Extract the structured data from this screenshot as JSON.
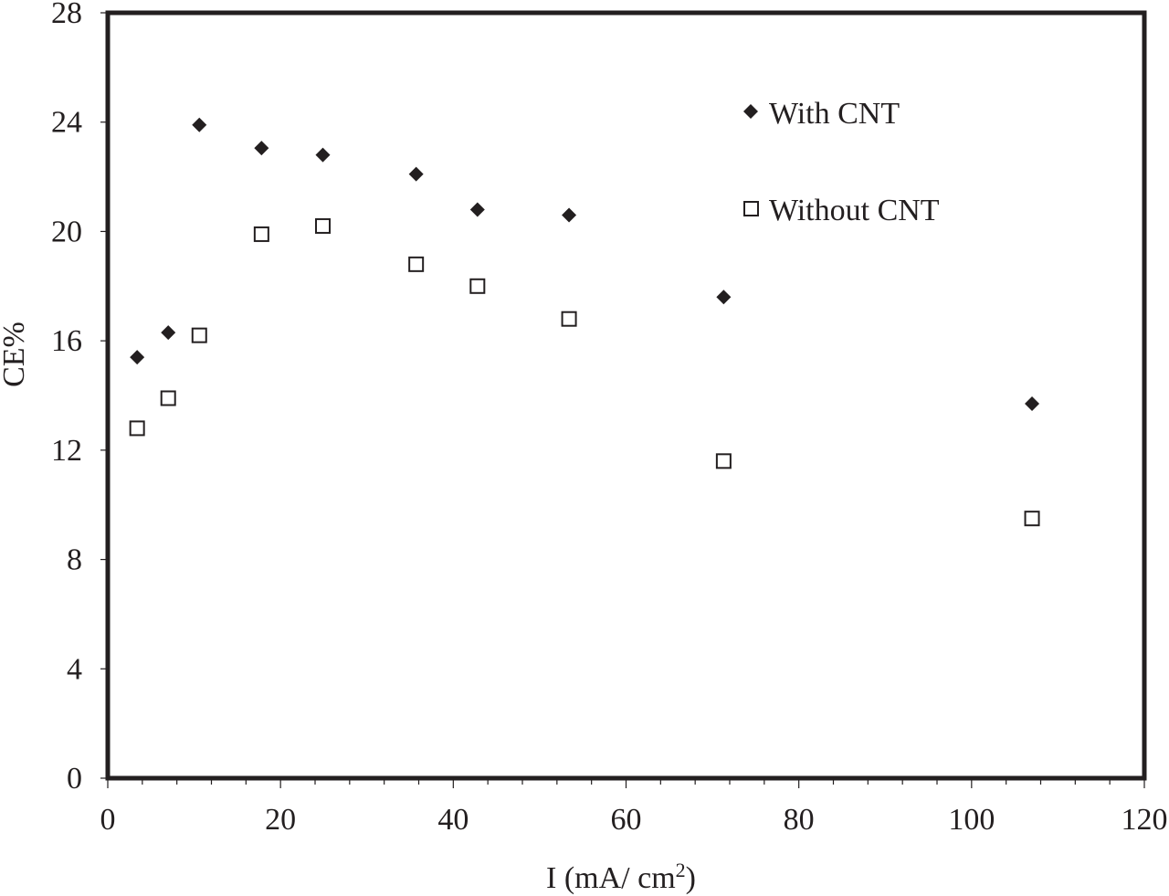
{
  "chart_data": {
    "type": "scatter",
    "title": "",
    "xlabel": "I (mA/ cm",
    "xlabel_superscript": "2",
    "xlabel_suffix": ")",
    "ylabel": "CE%",
    "xlim": [
      0,
      120
    ],
    "ylim": [
      0,
      28
    ],
    "x_ticks": [
      0,
      20,
      40,
      60,
      80,
      100,
      120
    ],
    "y_ticks": [
      0,
      4,
      8,
      12,
      16,
      20,
      24,
      28
    ],
    "grid": false,
    "legend_placement": "top-right",
    "series": [
      {
        "name": "With CNT",
        "marker": "filled-diamond",
        "color": "#231f20",
        "x": [
          3.4,
          7.0,
          10.6,
          17.8,
          24.9,
          35.7,
          42.8,
          53.4,
          71.3,
          107.0
        ],
        "y": [
          15.4,
          16.3,
          23.9,
          23.05,
          22.8,
          22.1,
          20.8,
          20.6,
          17.6,
          13.7
        ]
      },
      {
        "name": "Without CNT",
        "marker": "open-square",
        "color": "#231f20",
        "x": [
          3.4,
          7.0,
          10.6,
          17.8,
          24.9,
          35.7,
          42.8,
          53.4,
          71.3,
          107.0
        ],
        "y": [
          12.8,
          13.9,
          16.2,
          19.9,
          20.2,
          18.8,
          18.0,
          16.8,
          11.6,
          9.5
        ]
      }
    ]
  }
}
